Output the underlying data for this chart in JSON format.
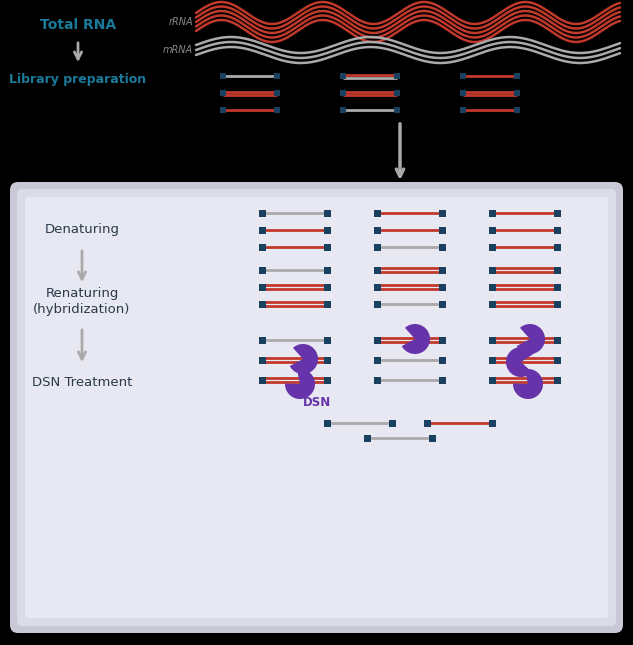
{
  "bg_color": "#000000",
  "panel_bg": "#e2e2ea",
  "text_color_teal": "#1a7a9a",
  "text_color_dark": "#2a3a4a",
  "arrow_color": "#aaaaaa",
  "rrna_color": "#c0392b",
  "mrna_color": "#999999",
  "bar_color": "#1a4060",
  "bar_red": "#c0392b",
  "bar_gray": "#aaaaaa",
  "dsn_color": "#6633aa",
  "labels": {
    "total_rna": "Total RNA",
    "library_prep": "Library preparation",
    "denaturing": "Denaturing",
    "renaturing": "Renaturing\n(hybridization)",
    "dsn_treatment": "DSN Treatment",
    "rrna": "rRNA",
    "mrna": "mRNA",
    "dsn": "DSN"
  }
}
